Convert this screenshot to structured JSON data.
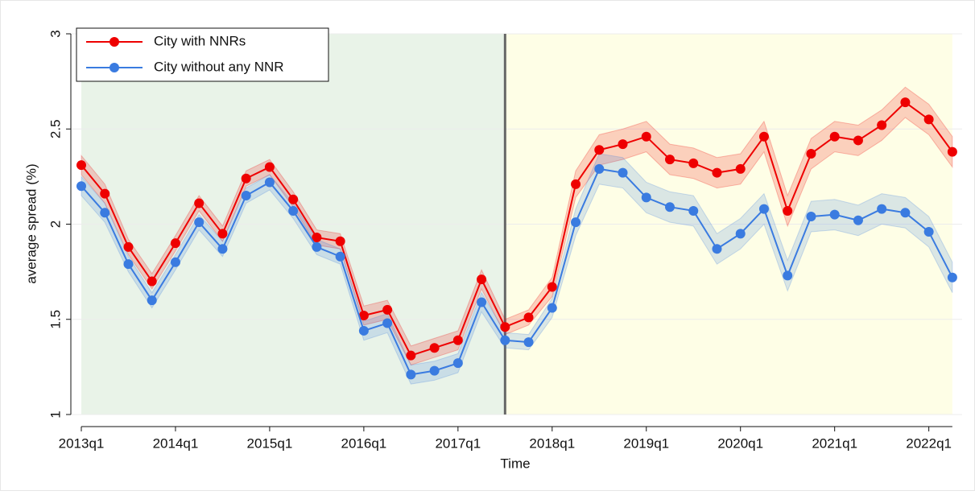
{
  "chart_data": {
    "type": "line",
    "x_label": "Time",
    "y_label": "average spread (%)",
    "categories": [
      "2013q1",
      null,
      null,
      null,
      "2014q1",
      null,
      null,
      null,
      "2015q1",
      null,
      null,
      null,
      "2016q1",
      null,
      null,
      null,
      "2017q1",
      null,
      null,
      null,
      "2018q1",
      null,
      null,
      null,
      "2019q1",
      null,
      null,
      null,
      "2020q1",
      null,
      null,
      null,
      "2021q1",
      null,
      null,
      null,
      "2022q1",
      null
    ],
    "series": [
      {
        "name": "City with NNRs",
        "color": "#ee0000",
        "values": [
          2.31,
          2.16,
          1.88,
          1.7,
          1.9,
          2.11,
          1.95,
          2.24,
          2.3,
          2.13,
          1.93,
          1.91,
          1.52,
          1.55,
          1.31,
          1.35,
          1.39,
          1.71,
          1.46,
          1.51,
          1.67,
          2.21,
          2.39,
          2.42,
          2.46,
          2.34,
          2.32,
          2.27,
          2.29,
          2.46,
          2.07,
          2.37,
          2.46,
          2.44,
          2.52,
          2.64,
          2.55,
          2.38
        ],
        "errors": [
          0.05,
          0.05,
          0.04,
          0.04,
          0.04,
          0.04,
          0.04,
          0.04,
          0.04,
          0.04,
          0.04,
          0.04,
          0.05,
          0.05,
          0.05,
          0.05,
          0.05,
          0.05,
          0.04,
          0.04,
          0.05,
          0.07,
          0.08,
          0.08,
          0.08,
          0.08,
          0.08,
          0.08,
          0.08,
          0.08,
          0.08,
          0.08,
          0.08,
          0.08,
          0.08,
          0.08,
          0.08,
          0.08
        ]
      },
      {
        "name": "City without any NNR",
        "color": "#3a7be0",
        "values": [
          2.2,
          2.06,
          1.79,
          1.6,
          1.8,
          2.01,
          1.87,
          2.15,
          2.22,
          2.07,
          1.88,
          1.83,
          1.44,
          1.48,
          1.21,
          1.23,
          1.27,
          1.59,
          1.39,
          1.38,
          1.56,
          2.01,
          2.29,
          2.27,
          2.14,
          2.09,
          2.07,
          1.87,
          1.95,
          2.08,
          1.73,
          2.04,
          2.05,
          2.02,
          2.08,
          2.06,
          1.96,
          1.72
        ],
        "errors": [
          0.05,
          0.05,
          0.04,
          0.04,
          0.04,
          0.04,
          0.04,
          0.04,
          0.04,
          0.04,
          0.04,
          0.04,
          0.05,
          0.05,
          0.05,
          0.05,
          0.05,
          0.05,
          0.04,
          0.04,
          0.05,
          0.07,
          0.08,
          0.08,
          0.08,
          0.08,
          0.08,
          0.08,
          0.08,
          0.08,
          0.08,
          0.08,
          0.08,
          0.08,
          0.08,
          0.08,
          0.08,
          0.08
        ]
      }
    ],
    "ylim": [
      1,
      3
    ],
    "yticks": [
      1,
      1.5,
      2,
      2.5,
      3
    ],
    "grid": true,
    "legend": "upper left",
    "shaded_regions": [
      {
        "start": 0,
        "end": 18,
        "color": "#e9f3e8"
      },
      {
        "start": 18,
        "end": 37,
        "color": "#fefee6"
      }
    ],
    "vline": {
      "at": 18,
      "color": "#666666"
    }
  }
}
